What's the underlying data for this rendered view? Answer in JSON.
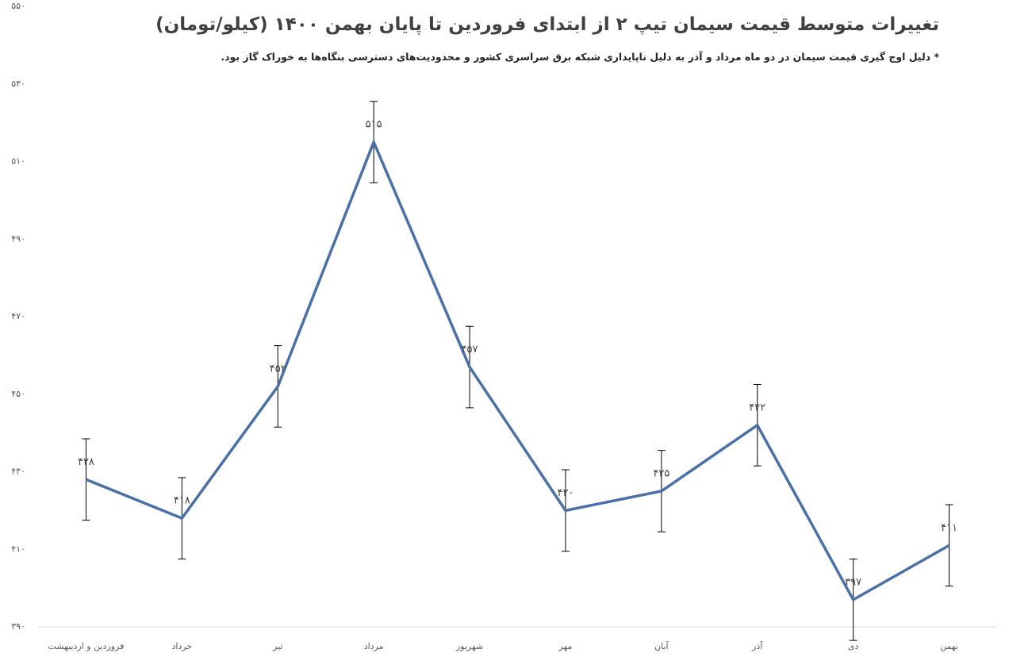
{
  "chart_data": {
    "type": "line",
    "title": "تغییرات متوسط قیمت سیمان تیپ ۲ از ابتدای فروردین تا پایان بهمن ۱۴۰۰ (کیلو/تومان)",
    "subtitle": "* دلیل اوج گیری قیمت سیمان در دو ماه مرداد و آذر به دلیل ناپایداری شبکه برق سراسری کشور و محدودیت‌های دسترسی بنگاه‌ها به خوراک گاز بود.",
    "categories": [
      "فروردین و اردیبهشت",
      "خرداد",
      "تیر",
      "مرداد",
      "شهریور",
      "مهر",
      "آبان",
      "آذر",
      "دی",
      "بهمن"
    ],
    "values": [
      428,
      418,
      452,
      515,
      457,
      420,
      425,
      442,
      397,
      411
    ],
    "value_labels": [
      "۴۲۸",
      "۴۱۸",
      "۴۵۲",
      "۵۱۵",
      "۴۵۷",
      "۴۲۰",
      "۴۲۵",
      "۴۴۲",
      "۳۹۷",
      "۴۱۱"
    ],
    "errors": [
      10.5,
      10.5,
      10.5,
      10.5,
      10.5,
      10.5,
      10.5,
      10.5,
      10.5,
      10.5
    ],
    "color": "#4a70a8",
    "ylim": [
      390,
      550
    ],
    "yticks": [
      {
        "value": 390,
        "label": "۳۹۰"
      },
      {
        "value": 410,
        "label": "۴۱۰"
      },
      {
        "value": 430,
        "label": "۴۳۰"
      },
      {
        "value": 450,
        "label": "۴۵۰"
      },
      {
        "value": 470,
        "label": "۴۷۰"
      },
      {
        "value": 490,
        "label": "۴۹۰"
      },
      {
        "value": 510,
        "label": "۵۱۰"
      },
      {
        "value": 530,
        "label": "۵۳۰"
      },
      {
        "value": 550,
        "label": "۵۵۰"
      }
    ],
    "grid": false
  }
}
